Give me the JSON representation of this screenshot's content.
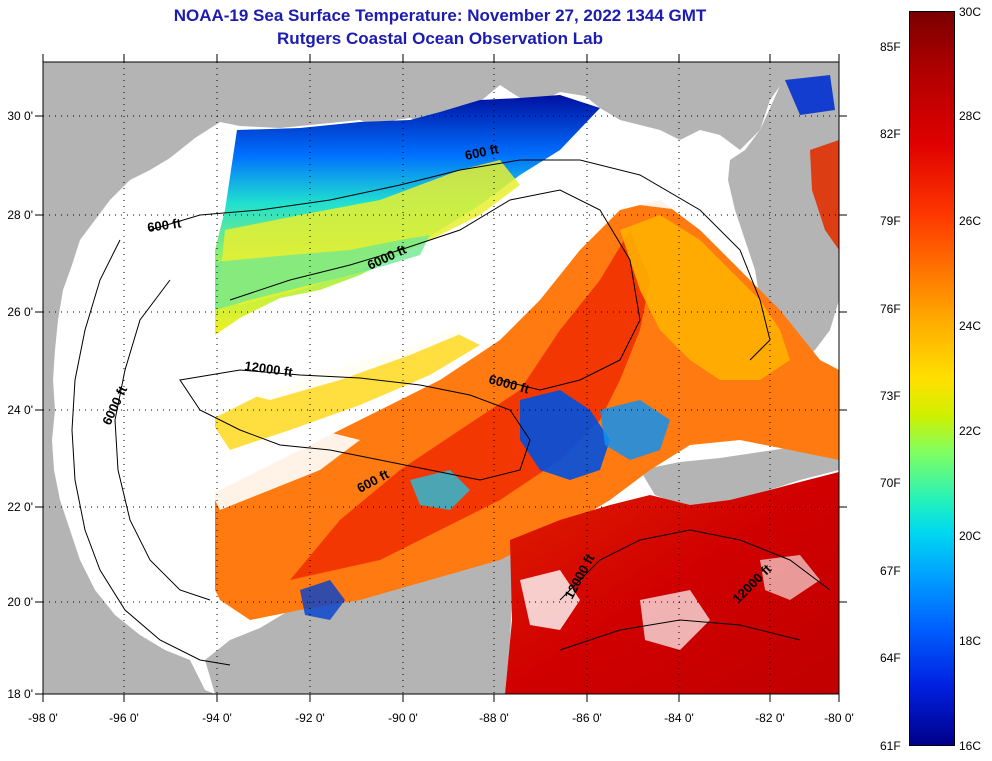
{
  "header": {
    "title": "NOAA-19 Sea Surface Temperature:  November 27, 2022 1344 GMT",
    "subtitle": "Rutgers Coastal Ocean Observation Lab"
  },
  "axes": {
    "lon_ticks": [
      "-98 0'",
      "-96 0'",
      "-94 0'",
      "-92 0'",
      "-90 0'",
      "-88 0'",
      "-86 0'",
      "-84 0'",
      "-82 0'",
      "-80 0'"
    ],
    "lat_ticks": [
      "30 0'",
      "28 0'",
      "26 0'",
      "24 0'",
      "22 0'",
      "20 0'",
      "18 0'"
    ]
  },
  "contours": {
    "label_600_west": "600 ft",
    "label_6000_west": "6000 ft",
    "label_600_north": "600 ft",
    "label_6000_north": "6000 ft",
    "label_12000_central": "12000 ft",
    "label_6000_central": "6000 ft",
    "label_600_south": "600 ft",
    "label_12000_caribbean_a": "12000 ft",
    "label_12000_caribbean_b": "12000 ft"
  },
  "colorbar": {
    "fahrenheit": [
      "85F",
      "82F",
      "79F",
      "76F",
      "73F",
      "70F",
      "67F",
      "64F",
      "61F"
    ],
    "celsius": [
      "30C",
      "28C",
      "26C",
      "24C",
      "22C",
      "20C",
      "18C",
      "16C"
    ]
  },
  "colors": {
    "title": "#1c1cb0",
    "land": "#b4b4b4",
    "cloud": "#ffffff"
  }
}
